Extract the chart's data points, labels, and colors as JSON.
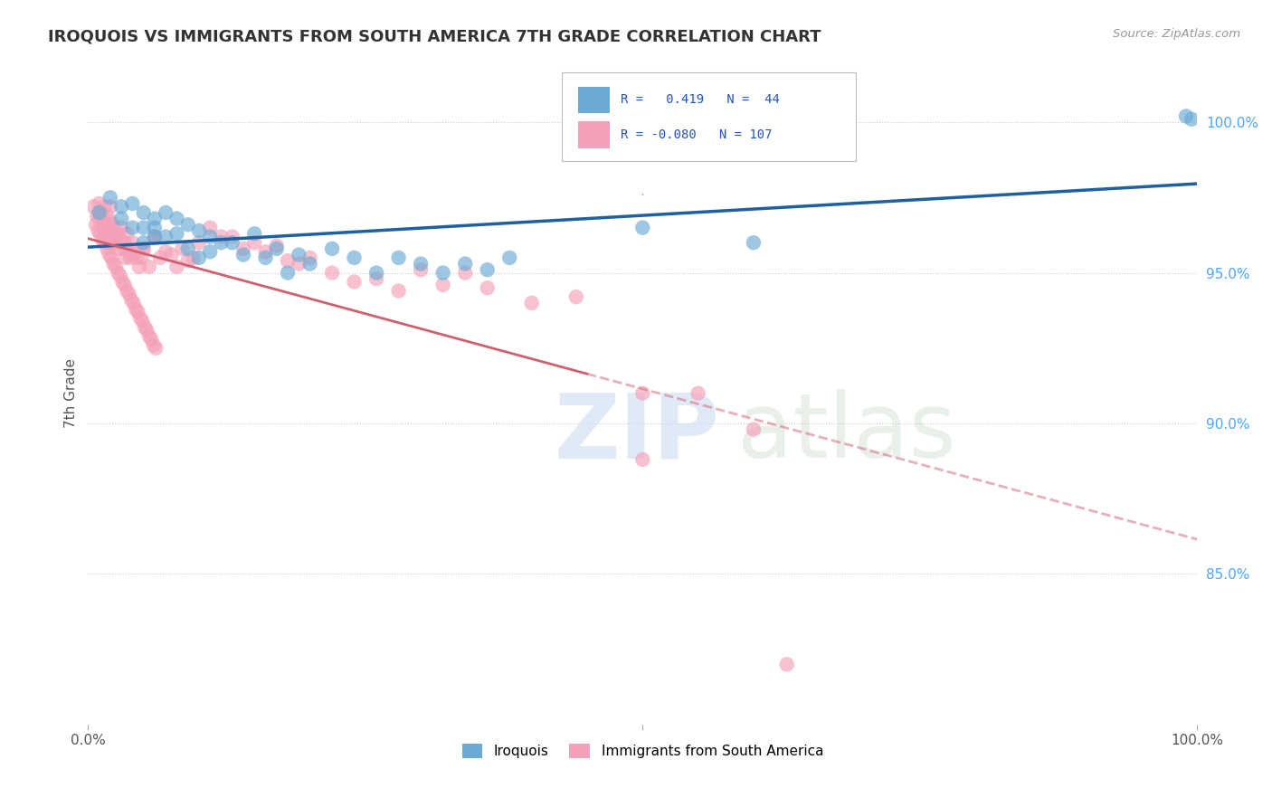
{
  "title": "IROQUOIS VS IMMIGRANTS FROM SOUTH AMERICA 7TH GRADE CORRELATION CHART",
  "source": "Source: ZipAtlas.com",
  "ylabel": "7th Grade",
  "ytick_labels": [
    "100.0%",
    "95.0%",
    "90.0%",
    "85.0%"
  ],
  "ytick_positions": [
    1.0,
    0.95,
    0.9,
    0.85
  ],
  "xlim": [
    0.0,
    1.0
  ],
  "ylim": [
    0.8,
    1.02
  ],
  "blue_color": "#6aaad4",
  "pink_color": "#f4a0b8",
  "trendline_blue": "#2060a0",
  "trendline_pink": "#d06070",
  "blue_scatter_x": [
    0.01,
    0.02,
    0.03,
    0.03,
    0.04,
    0.04,
    0.05,
    0.05,
    0.05,
    0.06,
    0.06,
    0.06,
    0.07,
    0.07,
    0.08,
    0.08,
    0.09,
    0.09,
    0.1,
    0.1,
    0.11,
    0.11,
    0.12,
    0.13,
    0.14,
    0.15,
    0.16,
    0.17,
    0.18,
    0.19,
    0.2,
    0.22,
    0.24,
    0.26,
    0.28,
    0.3,
    0.32,
    0.34,
    0.36,
    0.38,
    0.5,
    0.6,
    0.99,
    0.995
  ],
  "blue_scatter_y": [
    0.97,
    0.975,
    0.972,
    0.968,
    0.973,
    0.965,
    0.97,
    0.965,
    0.96,
    0.968,
    0.965,
    0.962,
    0.97,
    0.962,
    0.968,
    0.963,
    0.966,
    0.958,
    0.964,
    0.955,
    0.962,
    0.957,
    0.96,
    0.96,
    0.956,
    0.963,
    0.955,
    0.958,
    0.95,
    0.956,
    0.953,
    0.958,
    0.955,
    0.95,
    0.955,
    0.953,
    0.95,
    0.953,
    0.951,
    0.955,
    0.965,
    0.96,
    1.002,
    1.001
  ],
  "pink_scatter_x": [
    0.005,
    0.008,
    0.01,
    0.012,
    0.013,
    0.015,
    0.016,
    0.017,
    0.018,
    0.019,
    0.02,
    0.02,
    0.022,
    0.023,
    0.024,
    0.025,
    0.026,
    0.027,
    0.028,
    0.03,
    0.032,
    0.033,
    0.034,
    0.035,
    0.036,
    0.038,
    0.04,
    0.042,
    0.044,
    0.046,
    0.048,
    0.05,
    0.055,
    0.06,
    0.065,
    0.07,
    0.075,
    0.08,
    0.085,
    0.09,
    0.095,
    0.1,
    0.11,
    0.12,
    0.13,
    0.14,
    0.15,
    0.16,
    0.17,
    0.18,
    0.19,
    0.2,
    0.22,
    0.24,
    0.26,
    0.28,
    0.3,
    0.32,
    0.34,
    0.36,
    0.4,
    0.44,
    0.5,
    0.55,
    0.6,
    0.007,
    0.009,
    0.011,
    0.013,
    0.015,
    0.017,
    0.019,
    0.021,
    0.023,
    0.025,
    0.027,
    0.029,
    0.031,
    0.033,
    0.035,
    0.037,
    0.039,
    0.041,
    0.043,
    0.045,
    0.047,
    0.049,
    0.051,
    0.053,
    0.055,
    0.057,
    0.059,
    0.061,
    0.01,
    0.015,
    0.02,
    0.03,
    0.04,
    0.05,
    0.06,
    0.5,
    0.63
  ],
  "pink_scatter_y": [
    0.972,
    0.969,
    0.973,
    0.97,
    0.965,
    0.972,
    0.965,
    0.969,
    0.966,
    0.96,
    0.972,
    0.967,
    0.966,
    0.964,
    0.963,
    0.96,
    0.962,
    0.958,
    0.963,
    0.965,
    0.958,
    0.96,
    0.955,
    0.963,
    0.958,
    0.955,
    0.96,
    0.957,
    0.955,
    0.952,
    0.955,
    0.958,
    0.952,
    0.962,
    0.955,
    0.957,
    0.956,
    0.952,
    0.958,
    0.954,
    0.955,
    0.96,
    0.965,
    0.962,
    0.962,
    0.958,
    0.96,
    0.957,
    0.959,
    0.954,
    0.953,
    0.955,
    0.95,
    0.947,
    0.948,
    0.944,
    0.951,
    0.946,
    0.95,
    0.945,
    0.94,
    0.942,
    0.91,
    0.91,
    0.898,
    0.966,
    0.964,
    0.963,
    0.961,
    0.96,
    0.958,
    0.956,
    0.955,
    0.953,
    0.952,
    0.95,
    0.949,
    0.947,
    0.946,
    0.944,
    0.943,
    0.941,
    0.94,
    0.938,
    0.937,
    0.935,
    0.934,
    0.932,
    0.931,
    0.929,
    0.928,
    0.926,
    0.925,
    0.968,
    0.963,
    0.962,
    0.96,
    0.956,
    0.958,
    0.962,
    0.888,
    0.82
  ]
}
